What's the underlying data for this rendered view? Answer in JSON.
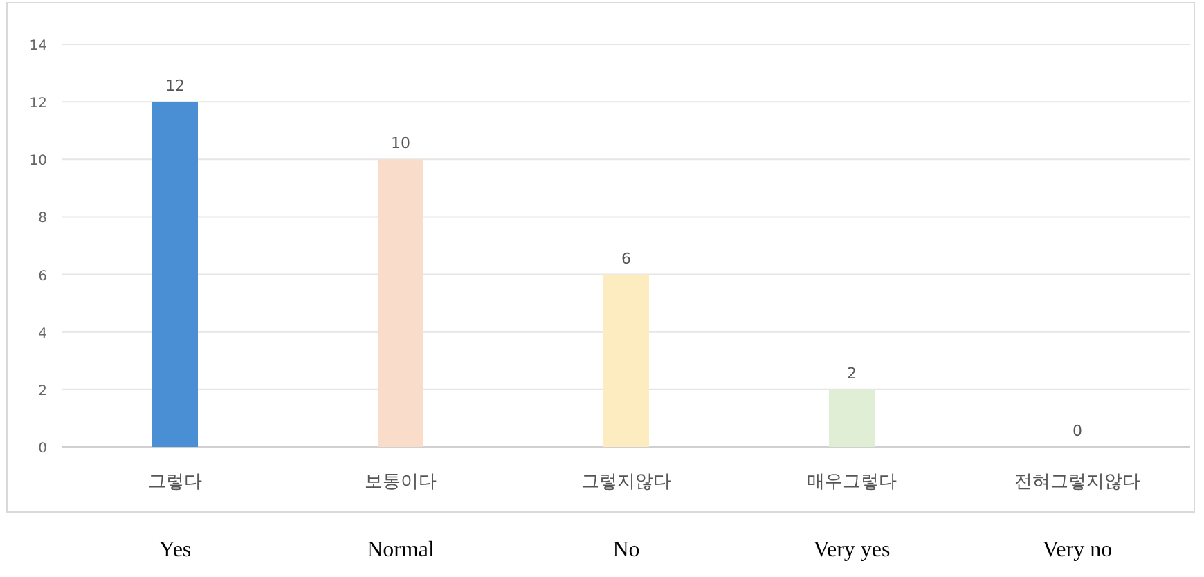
{
  "chart_data": {
    "type": "bar",
    "categories": [
      "그렇다\nYes",
      "보통이다\nNormal",
      "그렇지않다\nNo",
      "매우그렇다\nVery yes",
      "전혀그렇지않다\nVery no"
    ],
    "values": [
      12,
      10,
      6,
      2,
      0
    ],
    "colors": [
      "#4a8fd4",
      "#f9dcc9",
      "#fdecbf",
      "#e1eed6",
      "#e8e8e8"
    ],
    "ylim": [
      0,
      14
    ],
    "yticks": [
      0,
      2,
      4,
      6,
      8,
      10,
      12,
      14
    ],
    "grid": "y",
    "data_labels": true
  }
}
